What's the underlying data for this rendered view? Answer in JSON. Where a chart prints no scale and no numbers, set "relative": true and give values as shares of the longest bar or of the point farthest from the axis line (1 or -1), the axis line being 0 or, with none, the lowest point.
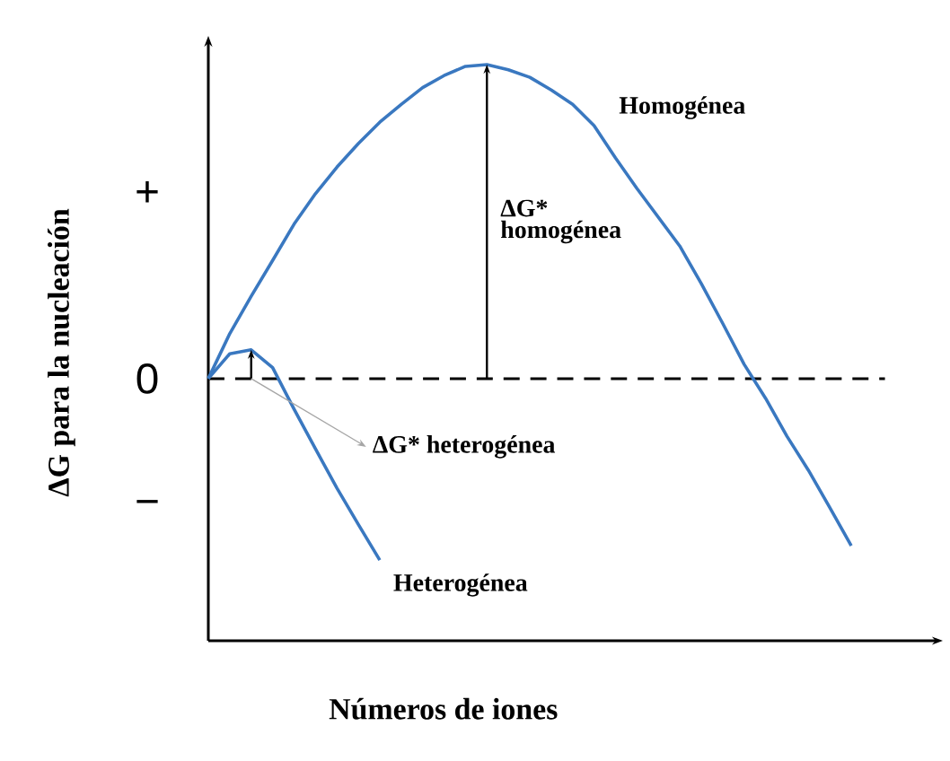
{
  "chart_data": {
    "type": "line",
    "relative": true,
    "xlabel": "Números de iones",
    "ylabel": "ΔG para la nucleación",
    "categories": [
      null,
      null,
      null,
      null,
      null,
      null,
      null,
      null,
      null,
      null,
      null,
      null,
      null,
      null,
      null,
      null,
      null,
      null,
      null,
      null,
      null,
      null,
      null,
      null,
      null,
      null,
      null,
      null,
      null,
      null,
      null
    ],
    "marker": "none",
    "line_style": "solid",
    "series": [
      {
        "name": "Homogénea",
        "color": "#3a78c0",
        "values": [
          0.455,
          0.533,
          0.598,
          0.66,
          0.723,
          0.776,
          0.822,
          0.863,
          0.9,
          0.931,
          0.96,
          0.981,
          0.997,
          1.0,
          0.991,
          0.978,
          0.956,
          0.931,
          0.894,
          0.838,
          0.785,
          0.735,
          0.685,
          0.62,
          0.551,
          0.48,
          0.421,
          0.355,
          0.296,
          0.231,
          0.165
        ]
      },
      {
        "name": "Heterogénea",
        "color": "#3a78c0",
        "values": [
          0.455,
          0.498,
          0.505,
          0.474,
          0.402,
          0.333,
          0.265,
          0.202,
          0.14,
          null,
          null,
          null,
          null,
          null,
          null,
          null,
          null,
          null,
          null,
          null,
          null,
          null,
          null,
          null,
          null,
          null,
          null,
          null,
          null,
          null,
          null
        ]
      }
    ],
    "ref_lines": [
      {
        "axis": "y",
        "value": 0.455,
        "line_style": "dashed",
        "color": "#000000"
      }
    ],
    "annotations": [
      "ΔG* homogénea",
      "ΔG* heterogénea",
      "+",
      "0",
      "−"
    ]
  }
}
